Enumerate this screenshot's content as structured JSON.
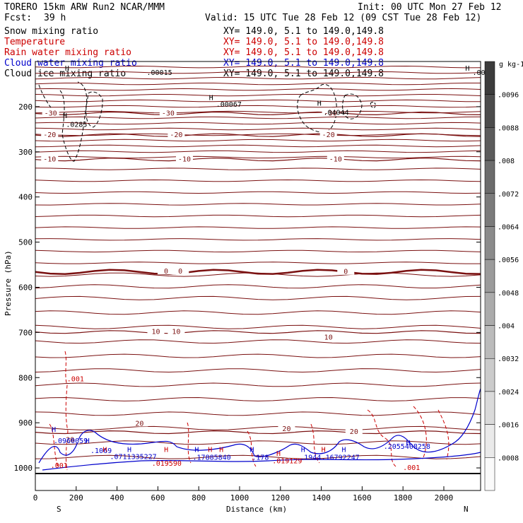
{
  "header": {
    "model": "TORERO  15km ARW    Run2    NCAR/MMM",
    "init": "Init: 00 UTC Mon 27 Feb 12",
    "fcst_label": "Fcst:",
    "fcst_value": "39 h",
    "valid": "Valid: 15 UTC Tue 28 Feb 12 (09 CST Tue 28 Feb 12)"
  },
  "legend": [
    {
      "name": "Snow mixing ratio",
      "xy": "XY= 149.0,  5.1 to 149.0,149.8",
      "color": "#000000"
    },
    {
      "name": "Temperature",
      "xy": "XY= 149.0,  5.1 to 149.0,149.8",
      "color": "#cc0000"
    },
    {
      "name": "Rain water mixing ratio",
      "xy": "XY= 149.0,  5.1 to 149.0,149.8",
      "color": "#cc0000"
    },
    {
      "name": "Cloud water mixing ratio",
      "xy": "XY= 149.0,  5.1 to 149.0,149.8",
      "color": "#0000cc"
    },
    {
      "name": "Cloud ice mixing ratio",
      "xy": "XY= 149.0,  5.1 to 149.0,149.8",
      "color": "#000000"
    }
  ],
  "chart_data": {
    "type": "cross-section contour",
    "xlabel": "Distance (km)",
    "ylabel": "Pressure (hPa)",
    "xlim": [
      0,
      2180
    ],
    "ylim": [
      1050,
      100
    ],
    "xticks": [
      "0",
      "200",
      "400",
      "600",
      "800",
      "1000",
      "1200",
      "1400",
      "1600",
      "1800",
      "2000"
    ],
    "yticks": [
      "200",
      "300",
      "400",
      "500",
      "600",
      "700",
      "800",
      "900",
      "1000"
    ],
    "x_ends": {
      "left": "S",
      "right": "N"
    },
    "colorbar": {
      "unit": "g kg-1",
      "ticks": [
        ".0096",
        ".0088",
        ".008",
        ".0072",
        ".0064",
        ".0056",
        ".0048",
        ".004",
        ".0032",
        ".0024",
        ".0016",
        ".0008"
      ]
    },
    "temperature_contours": [
      {
        "label": "-30",
        "p": 215
      },
      {
        "label": "-20",
        "p": 263
      },
      {
        "label": "-10",
        "p": 317
      },
      {
        "label": "0",
        "p": 566
      },
      {
        "label": "10",
        "p": 699
      },
      {
        "label": "20",
        "p": 921
      }
    ],
    "temperature_labels": [
      {
        "text": "-30",
        "x": 75,
        "p": 215
      },
      {
        "text": "-30",
        "x": 650,
        "p": 215
      },
      {
        "text": "-30",
        "x": 1445,
        "p": 215
      },
      {
        "text": "-20",
        "x": 70,
        "p": 263
      },
      {
        "text": "-20",
        "x": 690,
        "p": 263
      },
      {
        "text": "-20",
        "x": 1435,
        "p": 263
      },
      {
        "text": "-10",
        "x": 70,
        "p": 317
      },
      {
        "text": "-10",
        "x": 730,
        "p": 317
      },
      {
        "text": "-10",
        "x": 1470,
        "p": 317
      },
      {
        "text": "0",
        "x": 640,
        "p": 565
      },
      {
        "text": "0",
        "x": 710,
        "p": 565
      },
      {
        "text": "0",
        "x": 1520,
        "p": 566
      },
      {
        "text": "10",
        "x": 590,
        "p": 699
      },
      {
        "text": "10",
        "x": 690,
        "p": 699
      },
      {
        "text": "10",
        "x": 1435,
        "p": 711
      },
      {
        "text": "20",
        "x": 510,
        "p": 902
      },
      {
        "text": "20",
        "x": 1230,
        "p": 914
      },
      {
        "text": "20",
        "x": 1560,
        "p": 920
      },
      {
        "text": "20",
        "x": 170,
        "p": 938
      }
    ],
    "extrema_labels": [
      {
        "text": "H",
        "x": 145,
        "p": 120,
        "color": "#000000"
      },
      {
        "text": ".00015",
        "x": 545,
        "p": 130,
        "color": "#000000"
      },
      {
        "text": "H",
        "x": 2105,
        "p": 120,
        "color": "#000000"
      },
      {
        "text": ".000",
        "x": 2140,
        "p": 130,
        "color": "#000000"
      },
      {
        "text": "H",
        "x": 850,
        "p": 185,
        "color": "#000000"
      },
      {
        "text": ".00067",
        "x": 885,
        "p": 200,
        "color": "#000000"
      },
      {
        "text": "H",
        "x": 135,
        "p": 225,
        "color": "#000000"
      },
      {
        "text": ".0285",
        "x": 150,
        "p": 245,
        "color": "#000000"
      },
      {
        "text": "H",
        "x": 1380,
        "p": 198,
        "color": "#000000"
      },
      {
        "text": ".04044",
        "x": 1410,
        "p": 218,
        "color": "#000000"
      },
      {
        "text": ".001",
        "x": 155,
        "p": 808,
        "color": "#cc0000"
      },
      {
        "text": ".001",
        "x": 75,
        "p": 1000,
        "color": "#cc0000"
      },
      {
        "text": ".001",
        "x": 1800,
        "p": 1005,
        "color": "#cc0000"
      },
      {
        "text": "H",
        "x": 80,
        "p": 920,
        "color": "#0000cc"
      },
      {
        "text": ".0960059",
        "x": 90,
        "p": 945,
        "color": "#0000cc"
      },
      {
        "text": "H",
        "x": 245,
        "p": 945,
        "color": "#0000cc"
      },
      {
        "text": ".1069",
        "x": 270,
        "p": 967,
        "color": "#0000cc"
      },
      {
        "text": "H",
        "x": 330,
        "p": 965,
        "color": "#cc0000"
      },
      {
        "text": "H",
        "x": 450,
        "p": 965,
        "color": "#0000cc"
      },
      {
        "text": ".0711335227",
        "x": 365,
        "p": 980,
        "color": "#0000cc"
      },
      {
        "text": "H",
        "x": 630,
        "p": 965,
        "color": "#cc0000"
      },
      {
        "text": ".019590",
        "x": 570,
        "p": 995,
        "color": "#cc0000"
      },
      {
        "text": "H",
        "x": 780,
        "p": 965,
        "color": "#0000cc"
      },
      {
        "text": "H",
        "x": 845,
        "p": 965,
        "color": "#cc0000"
      },
      {
        "text": "H",
        "x": 900,
        "p": 965,
        "color": "#cc0000"
      },
      {
        "text": ".17885840",
        "x": 770,
        "p": 982,
        "color": "#0000cc"
      },
      {
        "text": "H",
        "x": 1050,
        "p": 965,
        "color": "#0000cc"
      },
      {
        "text": ".178",
        "x": 1060,
        "p": 982,
        "color": "#0000cc"
      },
      {
        "text": "H",
        "x": 1180,
        "p": 973,
        "color": "#cc0000"
      },
      {
        "text": ".019129",
        "x": 1160,
        "p": 990,
        "color": "#cc0000"
      },
      {
        "text": "H",
        "x": 1300,
        "p": 965,
        "color": "#0000cc"
      },
      {
        "text": "H",
        "x": 1400,
        "p": 965,
        "color": "#cc0000"
      },
      {
        "text": "H",
        "x": 1500,
        "p": 965,
        "color": "#0000cc"
      },
      {
        "text": ".1944",
        "x": 1295,
        "p": 982,
        "color": "#0000cc"
      },
      {
        "text": ".16792247",
        "x": 1400,
        "p": 982,
        "color": "#0000cc"
      },
      {
        "text": "H",
        "x": 1815,
        "p": 950,
        "color": "#0000cc"
      },
      {
        "text": ".2055408258",
        "x": 1705,
        "p": 958,
        "color": "#0000cc"
      }
    ]
  }
}
